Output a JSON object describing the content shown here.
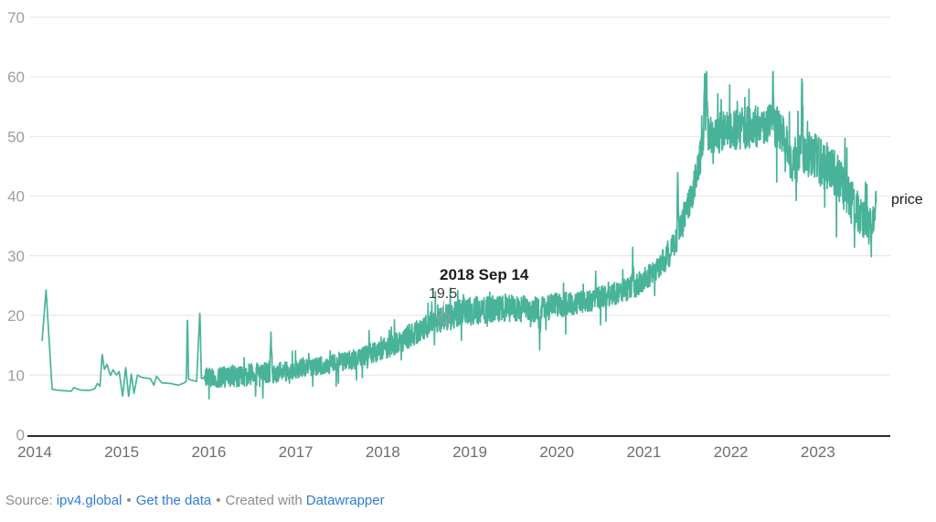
{
  "chart_data": {
    "type": "line",
    "title": "",
    "series_label": "price",
    "x_ticks": [
      "2014",
      "2015",
      "2016",
      "2017",
      "2018",
      "2019",
      "2020",
      "2021",
      "2022",
      "2023"
    ],
    "y_ticks": [
      0,
      10,
      20,
      30,
      40,
      50,
      60,
      70
    ],
    "x_range": [
      2014.0,
      2023.7
    ],
    "ylim": [
      0,
      70
    ],
    "grid": true,
    "legend_position": "inline-right",
    "line_color": "#49b39a",
    "annotation": {
      "date_label": "2018 Sep 14",
      "value_label": "19.5",
      "x": 2018.704,
      "y": 19.5
    },
    "trend": [
      [
        2014.085,
        15.8
      ],
      [
        2014.13,
        24.3
      ],
      [
        2014.2,
        7.6
      ],
      [
        2014.3,
        7.4
      ],
      [
        2014.42,
        7.3
      ],
      [
        2014.45,
        7.9
      ],
      [
        2014.52,
        7.5
      ],
      [
        2014.62,
        7.4
      ],
      [
        2014.69,
        7.7
      ],
      [
        2014.72,
        8.6
      ],
      [
        2014.75,
        8.1
      ],
      [
        2014.775,
        13.6
      ],
      [
        2014.8,
        10.9
      ],
      [
        2014.83,
        11.8
      ],
      [
        2014.87,
        9.9
      ],
      [
        2014.9,
        10.9
      ],
      [
        2014.94,
        10.0
      ],
      [
        2014.97,
        10.6
      ],
      [
        2015.01,
        6.4
      ],
      [
        2015.045,
        11.3
      ],
      [
        2015.08,
        6.3
      ],
      [
        2015.11,
        10.2
      ],
      [
        2015.14,
        6.9
      ],
      [
        2015.18,
        10.0
      ],
      [
        2015.23,
        9.6
      ],
      [
        2015.33,
        9.4
      ],
      [
        2015.37,
        8.3
      ],
      [
        2015.4,
        9.8
      ],
      [
        2015.46,
        8.7
      ],
      [
        2015.56,
        8.6
      ],
      [
        2015.65,
        8.3
      ],
      [
        2015.72,
        8.7
      ],
      [
        2015.742,
        9.0
      ],
      [
        2015.755,
        20.2
      ],
      [
        2015.768,
        9.3
      ],
      [
        2015.86,
        8.9
      ],
      [
        2015.898,
        20.8
      ],
      [
        2015.915,
        9.4
      ],
      [
        2015.96,
        9.6
      ],
      [
        2016.1,
        9.6
      ],
      [
        2016.3,
        9.8
      ],
      [
        2016.5,
        10.1
      ],
      [
        2016.7,
        10.4
      ],
      [
        2016.715,
        18.0
      ],
      [
        2016.73,
        10.4
      ],
      [
        2016.9,
        10.6
      ],
      [
        2017.0,
        10.9
      ],
      [
        2017.25,
        11.5
      ],
      [
        2017.5,
        12.1
      ],
      [
        2017.75,
        12.9
      ],
      [
        2018.0,
        14.4
      ],
      [
        2018.2,
        15.7
      ],
      [
        2018.4,
        17.3
      ],
      [
        2018.55,
        18.5
      ],
      [
        2018.704,
        19.5
      ],
      [
        2018.85,
        20.2
      ],
      [
        2018.955,
        21.0
      ],
      [
        2019.0,
        20.7
      ],
      [
        2019.25,
        21.0
      ],
      [
        2019.5,
        21.2
      ],
      [
        2019.79,
        21.0
      ],
      [
        2019.802,
        15.5
      ],
      [
        2019.815,
        21.0
      ],
      [
        2020.0,
        21.7
      ],
      [
        2020.3,
        22.4
      ],
      [
        2020.6,
        23.3
      ],
      [
        2020.86,
        24.6
      ],
      [
        2020.872,
        29.7
      ],
      [
        2020.885,
        24.8
      ],
      [
        2021.0,
        26.0
      ],
      [
        2021.15,
        27.8
      ],
      [
        2021.3,
        30.5
      ],
      [
        2021.38,
        33.0
      ],
      [
        2021.39,
        44.5
      ],
      [
        2021.4,
        34.0
      ],
      [
        2021.47,
        36.5
      ],
      [
        2021.55,
        40.0
      ],
      [
        2021.62,
        44.5
      ],
      [
        2021.67,
        48.0
      ],
      [
        2021.685,
        50.0
      ],
      [
        2021.697,
        60.3
      ],
      [
        2021.71,
        53.0
      ],
      [
        2021.722,
        60.3
      ],
      [
        2021.74,
        50.5
      ],
      [
        2021.8,
        49.8
      ],
      [
        2021.9,
        51.0
      ],
      [
        2022.1,
        51.3
      ],
      [
        2022.3,
        51.8
      ],
      [
        2022.47,
        52.3
      ],
      [
        2022.485,
        59.5
      ],
      [
        2022.5,
        52.0
      ],
      [
        2022.58,
        50.5
      ],
      [
        2022.64,
        49.0
      ],
      [
        2022.7,
        44.5
      ],
      [
        2022.76,
        48.0
      ],
      [
        2022.805,
        48.5
      ],
      [
        2022.818,
        60.9
      ],
      [
        2022.83,
        48.0
      ],
      [
        2022.9,
        47.0
      ],
      [
        2023.0,
        46.0
      ],
      [
        2023.15,
        44.5
      ],
      [
        2023.3,
        41.5
      ],
      [
        2023.4,
        38.5
      ],
      [
        2023.5,
        36.5
      ],
      [
        2023.58,
        35.0
      ],
      [
        2023.63,
        35.5
      ],
      [
        2023.655,
        37.5
      ],
      [
        2023.67,
        40.2
      ]
    ],
    "noise_band": [
      [
        2014.0,
        0
      ],
      [
        2015.94,
        0
      ],
      [
        2015.97,
        1.7
      ],
      [
        2016.5,
        1.9
      ],
      [
        2017.0,
        1.5
      ],
      [
        2017.6,
        1.6
      ],
      [
        2018.1,
        1.9
      ],
      [
        2018.6,
        2.2
      ],
      [
        2019.0,
        2.4
      ],
      [
        2019.6,
        2.2
      ],
      [
        2020.2,
        2.1
      ],
      [
        2020.8,
        1.9
      ],
      [
        2021.1,
        2.0
      ],
      [
        2021.4,
        2.3
      ],
      [
        2021.65,
        2.8
      ],
      [
        2021.85,
        3.3
      ],
      [
        2022.2,
        3.5
      ],
      [
        2022.6,
        3.7
      ],
      [
        2022.95,
        4.1
      ],
      [
        2023.35,
        4.0
      ],
      [
        2023.6,
        3.2
      ],
      [
        2023.67,
        1.5
      ]
    ]
  },
  "footer": {
    "source_prefix": "Source:",
    "source_link": "ipv4.global",
    "separator": "•",
    "data_link": "Get the data",
    "created_with": "Created with",
    "tool_link": "Datawrapper"
  }
}
